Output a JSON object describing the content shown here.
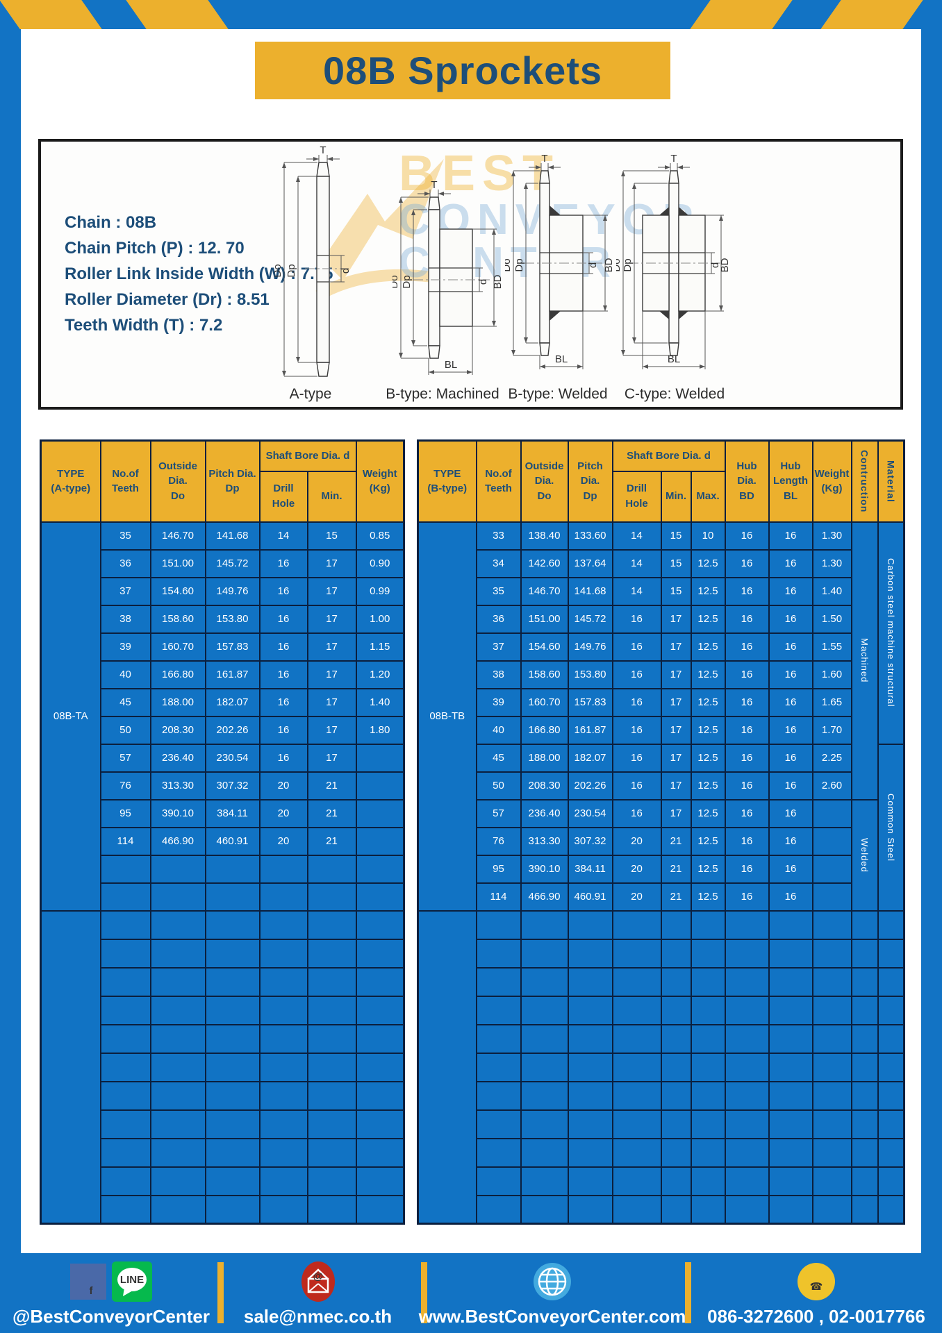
{
  "page": {
    "title": "08B Sprockets"
  },
  "specs": {
    "lines": [
      "Chain  : 08B",
      "Chain Pitch (P)  :  12. 70",
      "Roller Link Inside Width (W)  :  7.75",
      "Roller Diameter (Dr)  : 8.51",
      "Teeth Width (T)  :  7.2"
    ]
  },
  "diagram": {
    "watermark": {
      "line1": "BEST",
      "line2": "CONVEYOR",
      "line3": "CENTER"
    },
    "captions": [
      "A-type",
      "B-type: Machined",
      "B-type: Welded",
      "C-type: Welded"
    ],
    "dims_a": [
      "T",
      "Do",
      "Dp",
      "d"
    ],
    "dims_bm": [
      "T",
      "Do",
      "Dp",
      "d",
      "BD",
      "BL"
    ],
    "dims_bw": [
      "T",
      "Do",
      "Dp",
      "d",
      "BD",
      "BL"
    ],
    "dims_cw": [
      "T",
      "Do",
      "Dp",
      "d",
      "BD",
      "BL"
    ]
  },
  "table_a": {
    "headers": {
      "type": "TYPE\n(A-type)",
      "teeth": "No.of\nTeeth",
      "outside": "Outside\nDia.\nDo",
      "pitch": "Pitch Dia.\nDp",
      "shaft_bore": "Shaft Bore Dia. d",
      "drill": "Drill Hole",
      "min": "Min.",
      "weight": "Weight\n(Kg)"
    },
    "type_label": "08B-TA",
    "rows": [
      [
        "35",
        "146.70",
        "141.68",
        "14",
        "15",
        "0.85"
      ],
      [
        "36",
        "151.00",
        "145.72",
        "16",
        "17",
        "0.90"
      ],
      [
        "37",
        "154.60",
        "149.76",
        "16",
        "17",
        "0.99"
      ],
      [
        "38",
        "158.60",
        "153.80",
        "16",
        "17",
        "1.00"
      ],
      [
        "39",
        "160.70",
        "157.83",
        "16",
        "17",
        "1.15"
      ],
      [
        "40",
        "166.80",
        "161.87",
        "16",
        "17",
        "1.20"
      ],
      [
        "45",
        "188.00",
        "182.07",
        "16",
        "17",
        "1.40"
      ],
      [
        "50",
        "208.30",
        "202.26",
        "16",
        "17",
        "1.80"
      ],
      [
        "57",
        "236.40",
        "230.54",
        "16",
        "17",
        ""
      ],
      [
        "76",
        "313.30",
        "307.32",
        "20",
        "21",
        ""
      ],
      [
        "95",
        "390.10",
        "384.11",
        "20",
        "21",
        ""
      ],
      [
        "114",
        "466.90",
        "460.91",
        "20",
        "21",
        ""
      ]
    ],
    "section1_empty_rows": 2,
    "section2_empty_rows": 11
  },
  "table_b": {
    "headers": {
      "type": "TYPE\n(B-type)",
      "teeth": "No.of\nTeeth",
      "outside": "Outside\nDia.\nDo",
      "pitch": "Pitch Dia.\nDp",
      "shaft_bore": "Shaft Bore Dia. d",
      "drill": "Drill Hole",
      "min": "Min.",
      "max": "Max.",
      "hub_dia": "Hub Dia.\nBD",
      "hub_length": "Hub\nLength\nBL",
      "weight": "Weight\n(Kg)",
      "construction": "Contruction",
      "material": "Material"
    },
    "type_label": "08B-TB",
    "rows": [
      [
        "33",
        "138.40",
        "133.60",
        "14",
        "15",
        "10",
        "16",
        "16",
        "1.30"
      ],
      [
        "34",
        "142.60",
        "137.64",
        "14",
        "15",
        "12.5",
        "16",
        "16",
        "1.30"
      ],
      [
        "35",
        "146.70",
        "141.68",
        "14",
        "15",
        "12.5",
        "16",
        "16",
        "1.40"
      ],
      [
        "36",
        "151.00",
        "145.72",
        "16",
        "17",
        "12.5",
        "16",
        "16",
        "1.50"
      ],
      [
        "37",
        "154.60",
        "149.76",
        "16",
        "17",
        "12.5",
        "16",
        "16",
        "1.55"
      ],
      [
        "38",
        "158.60",
        "153.80",
        "16",
        "17",
        "12.5",
        "16",
        "16",
        "1.60"
      ],
      [
        "39",
        "160.70",
        "157.83",
        "16",
        "17",
        "12.5",
        "16",
        "16",
        "1.65"
      ],
      [
        "40",
        "166.80",
        "161.87",
        "16",
        "17",
        "12.5",
        "16",
        "16",
        "1.70"
      ],
      [
        "45",
        "188.00",
        "182.07",
        "16",
        "17",
        "12.5",
        "16",
        "16",
        "2.25"
      ],
      [
        "50",
        "208.30",
        "202.26",
        "16",
        "17",
        "12.5",
        "16",
        "16",
        "2.60"
      ],
      [
        "57",
        "236.40",
        "230.54",
        "16",
        "17",
        "12.5",
        "16",
        "16",
        ""
      ],
      [
        "76",
        "313.30",
        "307.32",
        "20",
        "21",
        "12.5",
        "16",
        "16",
        ""
      ],
      [
        "95",
        "390.10",
        "384.11",
        "20",
        "21",
        "12.5",
        "16",
        "16",
        ""
      ],
      [
        "114",
        "466.90",
        "460.91",
        "20",
        "21",
        "12.5",
        "16",
        "16",
        ""
      ]
    ],
    "construction": [
      {
        "label": "Machined",
        "rows": 10
      },
      {
        "label": "Welded",
        "rows": 4
      }
    ],
    "material": [
      {
        "label": "Carbon steel  machine structural",
        "rows": 8
      },
      {
        "label": "Common Steel",
        "rows": 6
      }
    ],
    "section2_empty_rows": 11
  },
  "footer": {
    "facebook_line": "@BestConveyorCenter",
    "email": "sale@nmec.co.th",
    "website": "www.BestConveyorCenter.com",
    "phone": "086-3272600 , 02-0017766",
    "icons": {
      "facebook": "f",
      "line": "LINE"
    }
  },
  "colors": {
    "frame_blue": "#1273c4",
    "cell_blue": "#1173c4",
    "header_yellow": "#ecb02d",
    "navy_text": "#1d4e79",
    "table_border": "#0b1f3e"
  }
}
